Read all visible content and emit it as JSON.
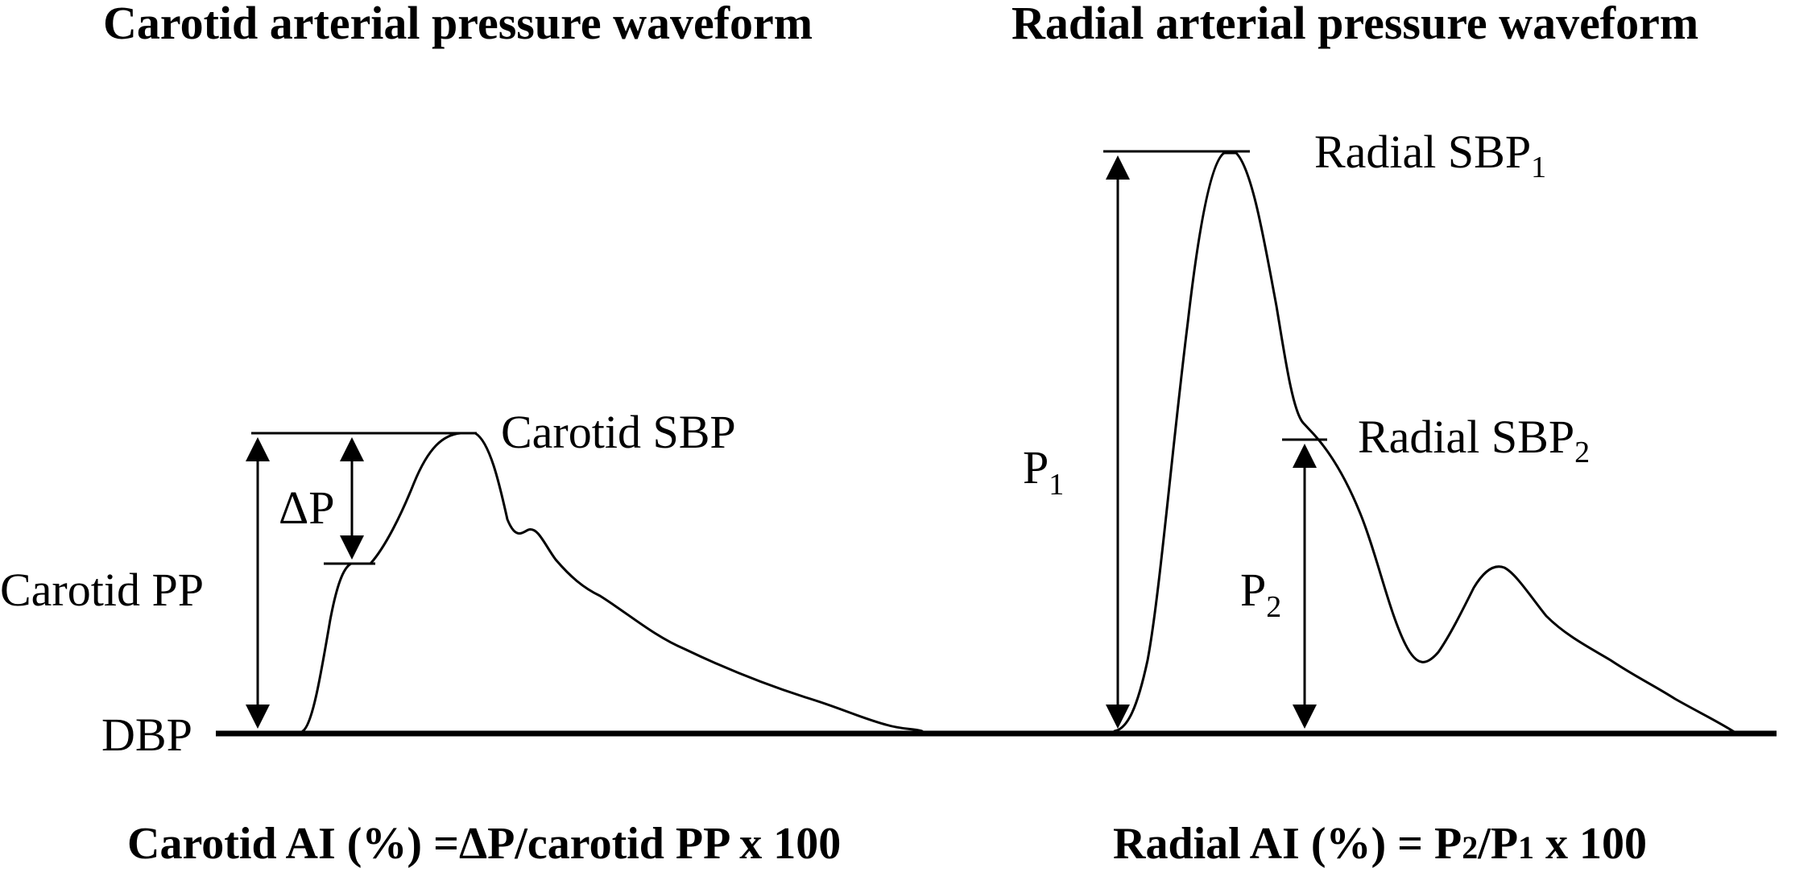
{
  "titles": {
    "left": "Carotid arterial pressure waveform",
    "right": "Radial arterial pressure waveform"
  },
  "labels": {
    "carotid_sbp": "Carotid SBP",
    "delta_p": "ΔP",
    "carotid_pp": "Carotid PP",
    "dbp": "DBP",
    "radial_sbp1": "Radial SBP",
    "radial_sbp1_sub": "1",
    "radial_sbp2": "Radial SBP",
    "radial_sbp2_sub": "2",
    "p1": "P",
    "p1_sub": "1",
    "p2": "P",
    "p2_sub": "2"
  },
  "formulas": {
    "carotid": "Carotid AI (%) =ΔP/carotid PP x 100",
    "radial_prefix": "Radial AI (%) = P",
    "radial_sub_2": "2",
    "radial_mid": "/P",
    "radial_sub_1": "1",
    "radial_suffix": " x 100"
  },
  "icons": {
    "arrow": "double-headed-arrow"
  }
}
